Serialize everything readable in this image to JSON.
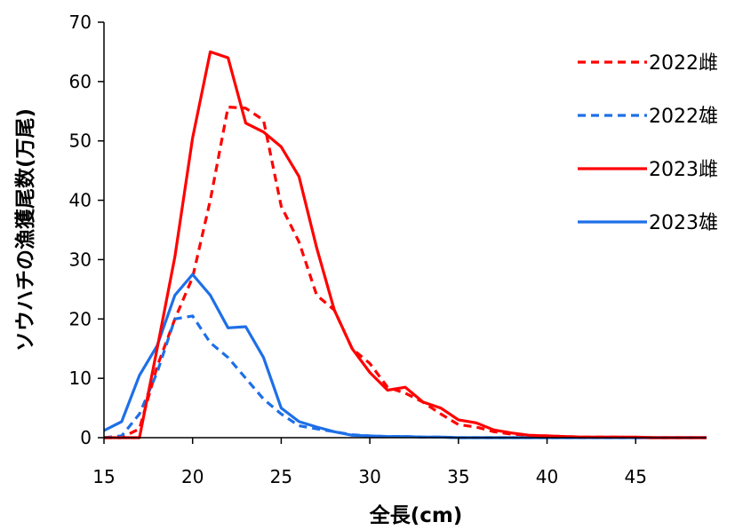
{
  "chart_data": {
    "type": "line",
    "xlabel": "全長(cm)",
    "ylabel": "ソウハチの漁獲尾数(万尾)",
    "xlim": [
      15,
      49
    ],
    "ylim": [
      0,
      70
    ],
    "xticks": [
      "15",
      "20",
      "25",
      "30",
      "35",
      "40",
      "45"
    ],
    "yticks": [
      "0",
      "10",
      "20",
      "30",
      "40",
      "50",
      "60",
      "70"
    ],
    "grid": false,
    "legend_position": "top-right",
    "x": [
      15,
      16,
      17,
      18,
      19,
      20,
      21,
      22,
      23,
      24,
      25,
      26,
      27,
      28,
      29,
      30,
      31,
      32,
      33,
      34,
      35,
      36,
      37,
      38,
      39,
      40,
      41,
      42,
      43,
      44,
      45,
      46,
      47,
      48,
      49
    ],
    "series": [
      {
        "name": "2022雌",
        "color": "#ff0000",
        "dash": "dashed",
        "values": [
          0,
          0,
          1.5,
          12,
          20,
          27,
          40,
          55.7,
          55.5,
          53.5,
          39,
          33,
          24,
          21.5,
          15,
          12.5,
          8.5,
          7.5,
          6,
          4,
          2.2,
          1.8,
          1,
          0.6,
          0.4,
          0.3,
          0.2,
          0.1,
          0.1,
          0.1,
          0,
          0,
          0,
          0,
          0
        ]
      },
      {
        "name": "2022雄",
        "color": "#1e6fe8",
        "dash": "dashed",
        "values": [
          0,
          0.3,
          4,
          11,
          20,
          20.5,
          16,
          13.5,
          10,
          6.5,
          4,
          2,
          1.5,
          1,
          0.5,
          0.3,
          0.2,
          0.2,
          0.1,
          0.1,
          0,
          0,
          0,
          0,
          0,
          0,
          0,
          0,
          0,
          0,
          0,
          0,
          0,
          0,
          0
        ]
      },
      {
        "name": "2023雌",
        "color": "#ff0000",
        "dash": "solid",
        "values": [
          0,
          0,
          0,
          15,
          30.5,
          50.5,
          65,
          64,
          53,
          51.5,
          49,
          44,
          32,
          21.5,
          15,
          11,
          8,
          8.5,
          6,
          5,
          3,
          2.5,
          1.3,
          0.8,
          0.4,
          0.3,
          0.2,
          0.1,
          0.1,
          0.1,
          0.1,
          0,
          0,
          0,
          0
        ]
      },
      {
        "name": "2023雄",
        "color": "#1e6fe8",
        "dash": "solid",
        "values": [
          1.2,
          2.7,
          10.5,
          15.5,
          24,
          27.5,
          24,
          18.5,
          18.7,
          13.5,
          5,
          2.7,
          1.8,
          1,
          0.4,
          0.3,
          0.2,
          0.2,
          0.1,
          0.1,
          0,
          0,
          0,
          0,
          0,
          0,
          0,
          0,
          0,
          0,
          0,
          0,
          0,
          0,
          0
        ]
      }
    ]
  }
}
